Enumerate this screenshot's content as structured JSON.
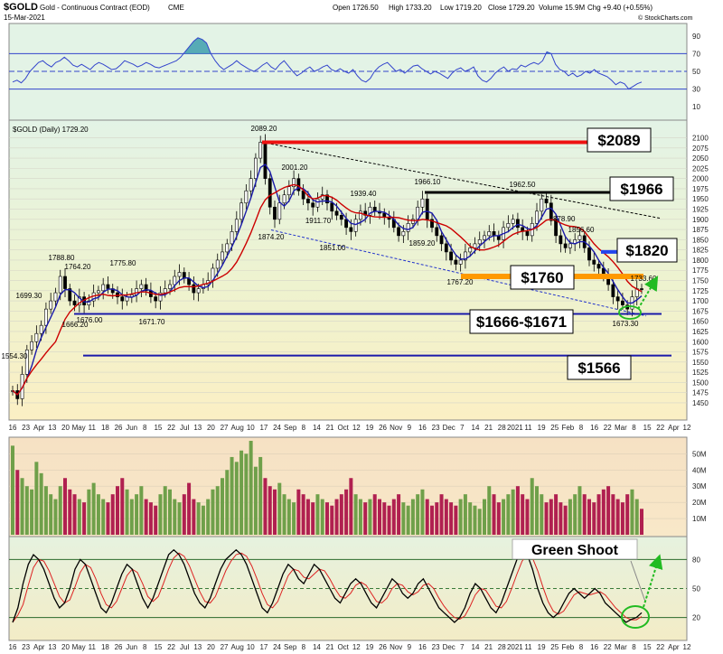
{
  "header": {
    "symbol": "$GOLD",
    "description": "Gold - Continuous Contract (EOD)",
    "exchange": "CME",
    "date": "15-Mar-2021",
    "open": "Open 1726.50",
    "high": "High 1733.20",
    "low": "Low 1719.20",
    "close": "Close 1729.20",
    "volume": "Volume 15.9M",
    "change": "Chg +9.40 (+0.55%)",
    "watermark": "© StockCharts.com"
  },
  "main_label": "$GOLD (Daily) 1729.20",
  "chart_data": [
    {
      "type": "line",
      "panel": "RSI",
      "y_ticks": [
        "90",
        "70",
        "50",
        "30",
        "10"
      ],
      "ylim": [
        0,
        100
      ],
      "reference_lines": [
        70,
        50,
        30
      ],
      "values": [
        38,
        40,
        37,
        42,
        50,
        55,
        60,
        62,
        58,
        55,
        60,
        62,
        66,
        62,
        57,
        55,
        58,
        55,
        52,
        57,
        60,
        58,
        55,
        52,
        53,
        57,
        62,
        60,
        58,
        55,
        57,
        60,
        58,
        55,
        54,
        56,
        58,
        60,
        62,
        66,
        72,
        78,
        84,
        88,
        86,
        82,
        70,
        62,
        56,
        52,
        55,
        58,
        62,
        58,
        55,
        52,
        50,
        53,
        57,
        60,
        55,
        52,
        58,
        62,
        56,
        50,
        45,
        48,
        52,
        55,
        50,
        52,
        55,
        57,
        52,
        50,
        53,
        50,
        48,
        52,
        45,
        40,
        38,
        42,
        50,
        55,
        58,
        60,
        55,
        50,
        52,
        48,
        52,
        56,
        57,
        53,
        50,
        47,
        50,
        48,
        45,
        42,
        48,
        52,
        54,
        50,
        52,
        55,
        45,
        40,
        38,
        42,
        48,
        52,
        55,
        50,
        53,
        52,
        57,
        55,
        58,
        60,
        58,
        62,
        72,
        70,
        58,
        52,
        50,
        45,
        48,
        44,
        46,
        50,
        48,
        52,
        48,
        46,
        44,
        40,
        35,
        38,
        36,
        30,
        33,
        36,
        38
      ]
    },
    {
      "type": "candlestick",
      "panel": "Price",
      "title": "$GOLD (Daily) 1729.20",
      "ylim": [
        1430,
        2110
      ],
      "y_ticks": [
        "2100",
        "2075",
        "2050",
        "2025",
        "2000",
        "1975",
        "1950",
        "1925",
        "1900",
        "1875",
        "1850",
        "1825",
        "1800",
        "1775",
        "1750",
        "1725",
        "1700",
        "1675",
        "1650",
        "1625",
        "1600",
        "1575",
        "1550",
        "1525",
        "1500",
        "1475",
        "1450"
      ],
      "x_labels": [
        "16",
        "23",
        "Apr",
        "13",
        "20",
        "May",
        "11",
        "18",
        "26",
        "Jun",
        "8",
        "15",
        "22",
        "Jul",
        "13",
        "20",
        "27",
        "Aug",
        "10",
        "17",
        "24",
        "Sep",
        "8",
        "14",
        "21",
        "Oct",
        "12",
        "19",
        "26",
        "Nov",
        "9",
        "16",
        "23",
        "Dec",
        "7",
        "14",
        "21",
        "28",
        "2021",
        "11",
        "19",
        "25",
        "Feb",
        "8",
        "16",
        "22",
        "Mar",
        "8",
        "15",
        "22",
        "Apr",
        "12"
      ],
      "close": [
        1480,
        1460,
        1520,
        1580,
        1600,
        1620,
        1640,
        1680,
        1700,
        1720,
        1760,
        1730,
        1700,
        1690,
        1710,
        1690,
        1700,
        1720,
        1725,
        1740,
        1730,
        1720,
        1710,
        1700,
        1710,
        1715,
        1730,
        1740,
        1725,
        1710,
        1700,
        1720,
        1730,
        1740,
        1760,
        1770,
        1755,
        1740,
        1720,
        1730,
        1740,
        1750,
        1780,
        1800,
        1820,
        1840,
        1870,
        1900,
        1940,
        1970,
        2000,
        2050,
        2089,
        2000,
        1930,
        1900,
        1940,
        1960,
        1980,
        2000,
        1970,
        1950,
        1940,
        1930,
        1950,
        1960,
        1940,
        1920,
        1910,
        1900,
        1880,
        1870,
        1900,
        1920,
        1910,
        1930,
        1920,
        1915,
        1905,
        1900,
        1880,
        1860,
        1870,
        1890,
        1900,
        1930,
        1950,
        1900,
        1880,
        1860,
        1840,
        1820,
        1800,
        1790,
        1800,
        1820,
        1830,
        1840,
        1850,
        1860,
        1870,
        1860,
        1850,
        1880,
        1890,
        1900,
        1880,
        1870,
        1860,
        1890,
        1920,
        1950,
        1940,
        1900,
        1860,
        1840,
        1830,
        1840,
        1850,
        1860,
        1830,
        1800,
        1790,
        1780,
        1760,
        1740,
        1710,
        1700,
        1690,
        1680,
        1710,
        1730,
        1729
      ],
      "moving_averages": [
        {
          "name": "",
          "color": "#1a1aaa"
        },
        {
          "name": "",
          "color": "#cc0000"
        }
      ],
      "annotations": [
        "2089.20",
        "2001.20",
        "1966.10",
        "1962.50",
        "1939.40",
        "1911.70",
        "1874.20",
        "1851.00",
        "1859.20",
        "1878.90",
        "1856.60",
        "1767.20",
        "1788.80",
        "1764.20",
        "1775.80",
        "1699.30",
        "1676.00",
        "1666.20",
        "1671.70",
        "1554.30",
        "1673.30",
        "1733.60"
      ],
      "levels": [
        {
          "value": 2089,
          "label": "$2089",
          "color": "#ee1111"
        },
        {
          "value": 1966,
          "label": "$1966",
          "color": "#000000"
        },
        {
          "value": 1820,
          "label": "$1820",
          "color": "#2244ee"
        },
        {
          "value": 1760,
          "label": "$1760",
          "color": "#ff9900"
        },
        {
          "value": 1668,
          "label": "$1666-$1671",
          "color": "#1a1aaa"
        },
        {
          "value": 1566,
          "label": "$1566",
          "color": "#1a1aaa"
        }
      ]
    },
    {
      "type": "bar",
      "panel": "Volume",
      "y_ticks": [
        "50M",
        "40M",
        "30M",
        "20M",
        "10M"
      ],
      "ylim": [
        0,
        58
      ],
      "values": [
        55,
        40,
        35,
        30,
        28,
        45,
        38,
        30,
        25,
        22,
        30,
        35,
        28,
        25,
        22,
        20,
        28,
        32,
        25,
        22,
        20,
        25,
        30,
        35,
        28,
        22,
        25,
        30,
        22,
        20,
        18,
        25,
        30,
        28,
        22,
        20,
        25,
        32,
        22,
        20,
        18,
        22,
        28,
        30,
        35,
        40,
        48,
        45,
        52,
        50,
        58,
        42,
        48,
        35,
        30,
        28,
        32,
        25,
        22,
        20,
        28,
        25,
        22,
        20,
        25,
        22,
        20,
        18,
        22,
        25,
        28,
        35,
        25,
        22,
        20,
        22,
        25,
        22,
        20,
        18,
        22,
        25,
        20,
        18,
        22,
        25,
        28,
        22,
        18,
        20,
        25,
        22,
        20,
        18,
        22,
        25,
        20,
        18,
        16,
        22,
        30,
        25,
        20,
        22,
        25,
        28,
        30,
        25,
        22,
        35,
        30,
        25,
        20,
        22,
        25,
        20,
        18,
        22,
        25,
        30,
        25,
        22,
        20,
        25,
        28,
        30,
        25,
        22,
        20,
        25,
        28,
        22,
        16
      ]
    },
    {
      "type": "line",
      "panel": "Stochastic",
      "y_ticks": [
        "80",
        "50",
        "20"
      ],
      "ylim": [
        0,
        100
      ],
      "reference_lines": [
        80,
        50,
        20
      ],
      "values": [
        15,
        30,
        55,
        75,
        85,
        80,
        70,
        55,
        40,
        30,
        35,
        50,
        70,
        80,
        75,
        60,
        45,
        30,
        25,
        35,
        50,
        65,
        75,
        70,
        55,
        40,
        30,
        40,
        55,
        70,
        85,
        90,
        85,
        75,
        60,
        45,
        35,
        30,
        40,
        55,
        70,
        80,
        85,
        90,
        85,
        75,
        60,
        45,
        30,
        25,
        35,
        50,
        65,
        75,
        70,
        60,
        55,
        65,
        75,
        70,
        60,
        50,
        40,
        35,
        45,
        55,
        60,
        55,
        45,
        35,
        30,
        40,
        50,
        60,
        55,
        45,
        40,
        45,
        55,
        60,
        50,
        40,
        30,
        25,
        20,
        15,
        20,
        30,
        45,
        55,
        50,
        40,
        30,
        25,
        35,
        50,
        65,
        80,
        90,
        85,
        70,
        50,
        35,
        25,
        20,
        25,
        35,
        45,
        50,
        45,
        40,
        45,
        50,
        45,
        35,
        30,
        25,
        20,
        15,
        18,
        20,
        25
      ],
      "annotation": "Green Shoot"
    }
  ]
}
